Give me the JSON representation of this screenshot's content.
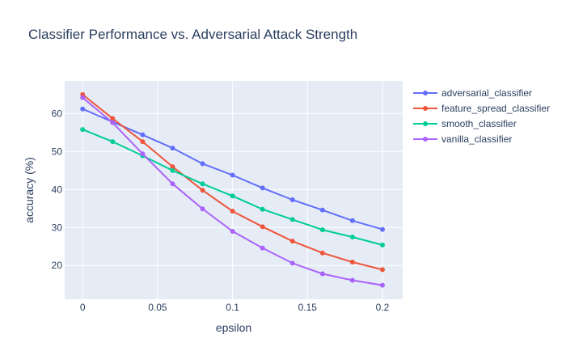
{
  "chart_data": {
    "type": "line",
    "title": "Classifier Performance vs. Adversarial Attack Strength",
    "xlabel": "epsilon",
    "ylabel": "accuracy (%)",
    "x": [
      0,
      0.02,
      0.04,
      0.06,
      0.08,
      0.1,
      0.12,
      0.14,
      0.16,
      0.18,
      0.2
    ],
    "xlim": [
      -0.012,
      0.2135
    ],
    "ylim": [
      11.1,
      68.6
    ],
    "x_ticks": [
      0,
      0.05,
      0.1,
      0.15,
      0.2
    ],
    "x_tick_labels": [
      "0",
      "0.05",
      "0.1",
      "0.15",
      "0.2"
    ],
    "y_ticks": [
      20,
      30,
      40,
      50,
      60
    ],
    "y_tick_labels": [
      "20",
      "30",
      "40",
      "50",
      "60"
    ],
    "grid": true,
    "legend_position": "top-right",
    "colors": {
      "plot_background": "#e5ecf6",
      "grid": "#ffffff",
      "text": "#2a3f5f"
    },
    "series": [
      {
        "name": "adversarial_classifier",
        "color": "#636efa",
        "values": [
          61.2,
          57.8,
          54.4,
          50.9,
          46.8,
          43.8,
          40.4,
          37.3,
          34.6,
          31.8,
          29.5
        ]
      },
      {
        "name": "feature_spread_classifier",
        "color": "#ef553b",
        "values": [
          65.0,
          58.7,
          52.6,
          46.0,
          39.8,
          34.3,
          30.2,
          26.4,
          23.3,
          20.9,
          18.9
        ]
      },
      {
        "name": "smooth_classifier",
        "color": "#00cc96",
        "values": [
          55.8,
          52.6,
          48.9,
          45.0,
          41.5,
          38.3,
          34.8,
          32.1,
          29.4,
          27.5,
          25.4
        ]
      },
      {
        "name": "vanilla_classifier",
        "color": "#ab63fa",
        "values": [
          64.2,
          57.6,
          49.4,
          41.5,
          34.9,
          29.0,
          24.6,
          20.6,
          17.8,
          16.1,
          14.8
        ]
      }
    ]
  }
}
